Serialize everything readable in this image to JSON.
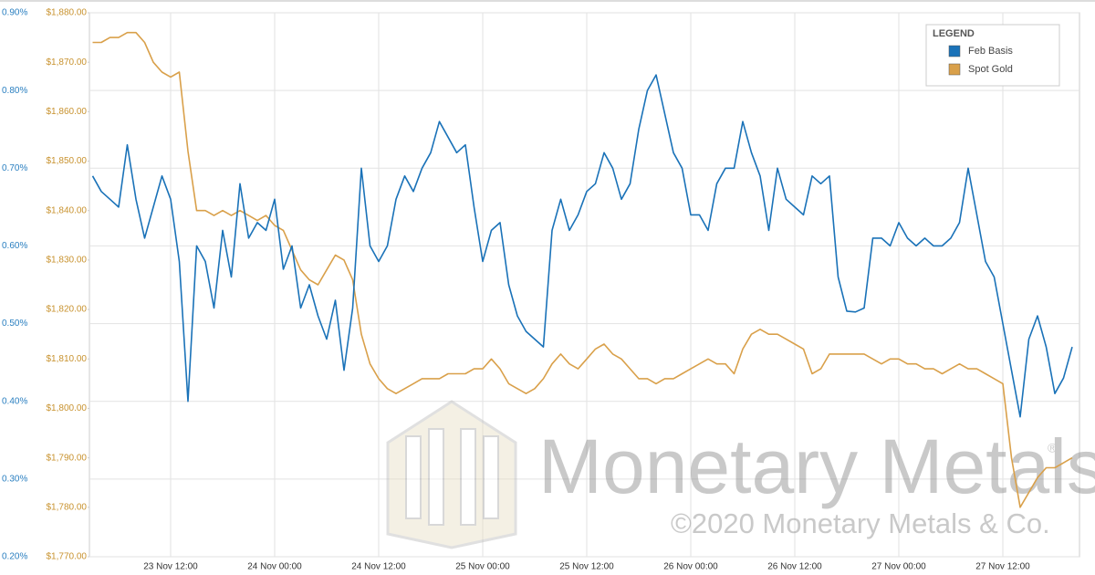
{
  "chart_data": {
    "type": "line",
    "legend_title": "LEGEND",
    "legend": "top-right",
    "grid": true,
    "watermark": "Monetary Metals",
    "watermark_mark": "®",
    "copyright": "©2020 Monetary Metals & Co.",
    "x": [
      "23 Nov 03:00",
      "23 Nov 04:00",
      "23 Nov 05:00",
      "23 Nov 06:00",
      "23 Nov 07:00",
      "23 Nov 08:00",
      "23 Nov 09:00",
      "23 Nov 10:00",
      "23 Nov 11:00",
      "23 Nov 12:00",
      "23 Nov 13:00",
      "23 Nov 14:00",
      "23 Nov 15:00",
      "23 Nov 16:00",
      "23 Nov 17:00",
      "23 Nov 18:00",
      "23 Nov 19:00",
      "23 Nov 20:00",
      "23 Nov 21:00",
      "23 Nov 22:00",
      "23 Nov 23:00",
      "24 Nov 00:00",
      "24 Nov 01:00",
      "24 Nov 02:00",
      "24 Nov 03:00",
      "24 Nov 04:00",
      "24 Nov 05:00",
      "24 Nov 06:00",
      "24 Nov 07:00",
      "24 Nov 08:00",
      "24 Nov 09:00",
      "24 Nov 10:00",
      "24 Nov 11:00",
      "24 Nov 12:00",
      "24 Nov 13:00",
      "24 Nov 14:00",
      "24 Nov 15:00",
      "24 Nov 16:00",
      "24 Nov 17:00",
      "24 Nov 18:00",
      "24 Nov 19:00",
      "24 Nov 20:00",
      "24 Nov 21:00",
      "24 Nov 22:00",
      "24 Nov 23:00",
      "25 Nov 00:00",
      "25 Nov 01:00",
      "25 Nov 02:00",
      "25 Nov 03:00",
      "25 Nov 04:00",
      "25 Nov 05:00",
      "25 Nov 06:00",
      "25 Nov 07:00",
      "25 Nov 08:00",
      "25 Nov 09:00",
      "25 Nov 10:00",
      "25 Nov 11:00",
      "25 Nov 12:00",
      "25 Nov 13:00",
      "25 Nov 14:00",
      "25 Nov 15:00",
      "25 Nov 16:00",
      "25 Nov 17:00",
      "25 Nov 18:00",
      "25 Nov 19:00",
      "25 Nov 20:00",
      "25 Nov 21:00",
      "25 Nov 22:00",
      "25 Nov 23:00",
      "26 Nov 00:00",
      "26 Nov 01:00",
      "26 Nov 02:00",
      "26 Nov 03:00",
      "26 Nov 04:00",
      "26 Nov 05:00",
      "26 Nov 06:00",
      "26 Nov 07:00",
      "26 Nov 08:00",
      "26 Nov 09:00",
      "26 Nov 10:00",
      "26 Nov 11:00",
      "26 Nov 12:00",
      "26 Nov 13:00",
      "26 Nov 14:00",
      "26 Nov 15:00",
      "26 Nov 16:00",
      "26 Nov 17:00",
      "26 Nov 18:00",
      "26 Nov 19:00",
      "26 Nov 20:00",
      "26 Nov 21:00",
      "26 Nov 22:00",
      "26 Nov 23:00",
      "27 Nov 00:00",
      "27 Nov 01:00",
      "27 Nov 02:00",
      "27 Nov 03:00",
      "27 Nov 04:00",
      "27 Nov 05:00",
      "27 Nov 06:00",
      "27 Nov 07:00",
      "27 Nov 08:00",
      "27 Nov 09:00",
      "27 Nov 10:00",
      "27 Nov 11:00",
      "27 Nov 12:00",
      "27 Nov 13:00",
      "27 Nov 14:00",
      "27 Nov 15:00",
      "27 Nov 16:00",
      "27 Nov 17:00",
      "27 Nov 18:00",
      "27 Nov 19:00",
      "27 Nov 20:00"
    ],
    "xticks": [
      "23 Nov 12:00",
      "24 Nov 00:00",
      "24 Nov 12:00",
      "25 Nov 00:00",
      "25 Nov 12:00",
      "26 Nov 00:00",
      "26 Nov 12:00",
      "27 Nov 00:00",
      "27 Nov 12:00"
    ],
    "ylim": [
      0.2,
      0.9
    ],
    "yticks": [
      {
        "value": 0.2,
        "label": "0.20%"
      },
      {
        "value": 0.3,
        "label": "0.30%"
      },
      {
        "value": 0.4,
        "label": "0.40%"
      },
      {
        "value": 0.5,
        "label": "0.50%"
      },
      {
        "value": 0.6,
        "label": "0.60%"
      },
      {
        "value": 0.7,
        "label": "0.70%"
      },
      {
        "value": 0.8,
        "label": "0.80%"
      },
      {
        "value": 0.9,
        "label": "0.90%"
      }
    ],
    "y2lim": [
      1770,
      1880
    ],
    "y2ticks": [
      {
        "value": 1770,
        "label": "$1,770.00"
      },
      {
        "value": 1780,
        "label": "$1,780.00"
      },
      {
        "value": 1790,
        "label": "$1,790.00"
      },
      {
        "value": 1800,
        "label": "$1,800.00"
      },
      {
        "value": 1810,
        "label": "$1,810.00"
      },
      {
        "value": 1820,
        "label": "$1,820.00"
      },
      {
        "value": 1830,
        "label": "$1,830.00"
      },
      {
        "value": 1840,
        "label": "$1,840.00"
      },
      {
        "value": 1850,
        "label": "$1,850.00"
      },
      {
        "value": 1860,
        "label": "$1,860.00"
      },
      {
        "value": 1870,
        "label": "$1,870.00"
      },
      {
        "value": 1880,
        "label": "$1,880.00"
      }
    ],
    "series": [
      {
        "name": "Feb Basis",
        "color": "#1a72b8",
        "values": [
          0.69,
          0.67,
          0.66,
          0.65,
          0.73,
          0.66,
          0.61,
          0.65,
          0.69,
          0.66,
          0.58,
          0.4,
          0.6,
          0.58,
          0.52,
          0.62,
          0.56,
          0.68,
          0.61,
          0.63,
          0.62,
          0.66,
          0.57,
          0.6,
          0.52,
          0.55,
          0.51,
          0.48,
          0.53,
          0.44,
          0.52,
          0.7,
          0.6,
          0.58,
          0.6,
          0.66,
          0.69,
          0.67,
          0.7,
          0.72,
          0.76,
          0.74,
          0.72,
          0.73,
          0.65,
          0.58,
          0.62,
          0.63,
          0.55,
          0.51,
          0.49,
          0.48,
          0.47,
          0.62,
          0.66,
          0.62,
          0.64,
          0.67,
          0.68,
          0.72,
          0.7,
          0.66,
          0.68,
          0.75,
          0.8,
          0.82,
          0.77,
          0.72,
          0.7,
          0.64,
          0.64,
          0.62,
          0.68,
          0.7,
          0.7,
          0.76,
          0.72,
          0.69,
          0.62,
          0.7,
          0.66,
          0.65,
          0.64,
          0.69,
          0.68,
          0.69,
          0.56,
          0.516,
          0.515,
          0.52,
          0.61,
          0.61,
          0.6,
          0.63,
          0.61,
          0.6,
          0.61,
          0.6,
          0.6,
          0.61,
          0.63,
          0.7,
          0.64,
          0.58,
          0.56,
          0.5,
          0.44,
          0.38,
          0.48,
          0.51,
          0.47,
          0.41,
          0.43,
          0.47
        ]
      },
      {
        "name": "Spot Gold",
        "color": "#d9a04a",
        "axis": "y2",
        "values": [
          1874,
          1874,
          1875,
          1875,
          1876,
          1876,
          1874,
          1870,
          1868,
          1867,
          1868,
          1852,
          1840,
          1840,
          1839,
          1840,
          1839,
          1840,
          1839,
          1838,
          1839,
          1837,
          1836,
          1832,
          1828,
          1826,
          1825,
          1828,
          1831,
          1830,
          1826,
          1815,
          1809,
          1806,
          1804,
          1803,
          1804,
          1805,
          1806,
          1806,
          1806,
          1807,
          1807,
          1807,
          1808,
          1808,
          1810,
          1808,
          1805,
          1804,
          1803,
          1804,
          1806,
          1809,
          1811,
          1809,
          1808,
          1810,
          1812,
          1813,
          1811,
          1810,
          1808,
          1806,
          1806,
          1805,
          1806,
          1806,
          1807,
          1808,
          1809,
          1810,
          1809,
          1809,
          1807,
          1812,
          1815,
          1816,
          1815,
          1815,
          1814,
          1813,
          1812,
          1807,
          1808,
          1811,
          1811,
          1811,
          1811,
          1811,
          1810,
          1809,
          1810,
          1810,
          1809,
          1809,
          1808,
          1808,
          1807,
          1808,
          1809,
          1808,
          1808,
          1807,
          1806,
          1805,
          1790,
          1780,
          1783,
          1786,
          1788,
          1788,
          1789,
          1790
        ]
      }
    ]
  }
}
